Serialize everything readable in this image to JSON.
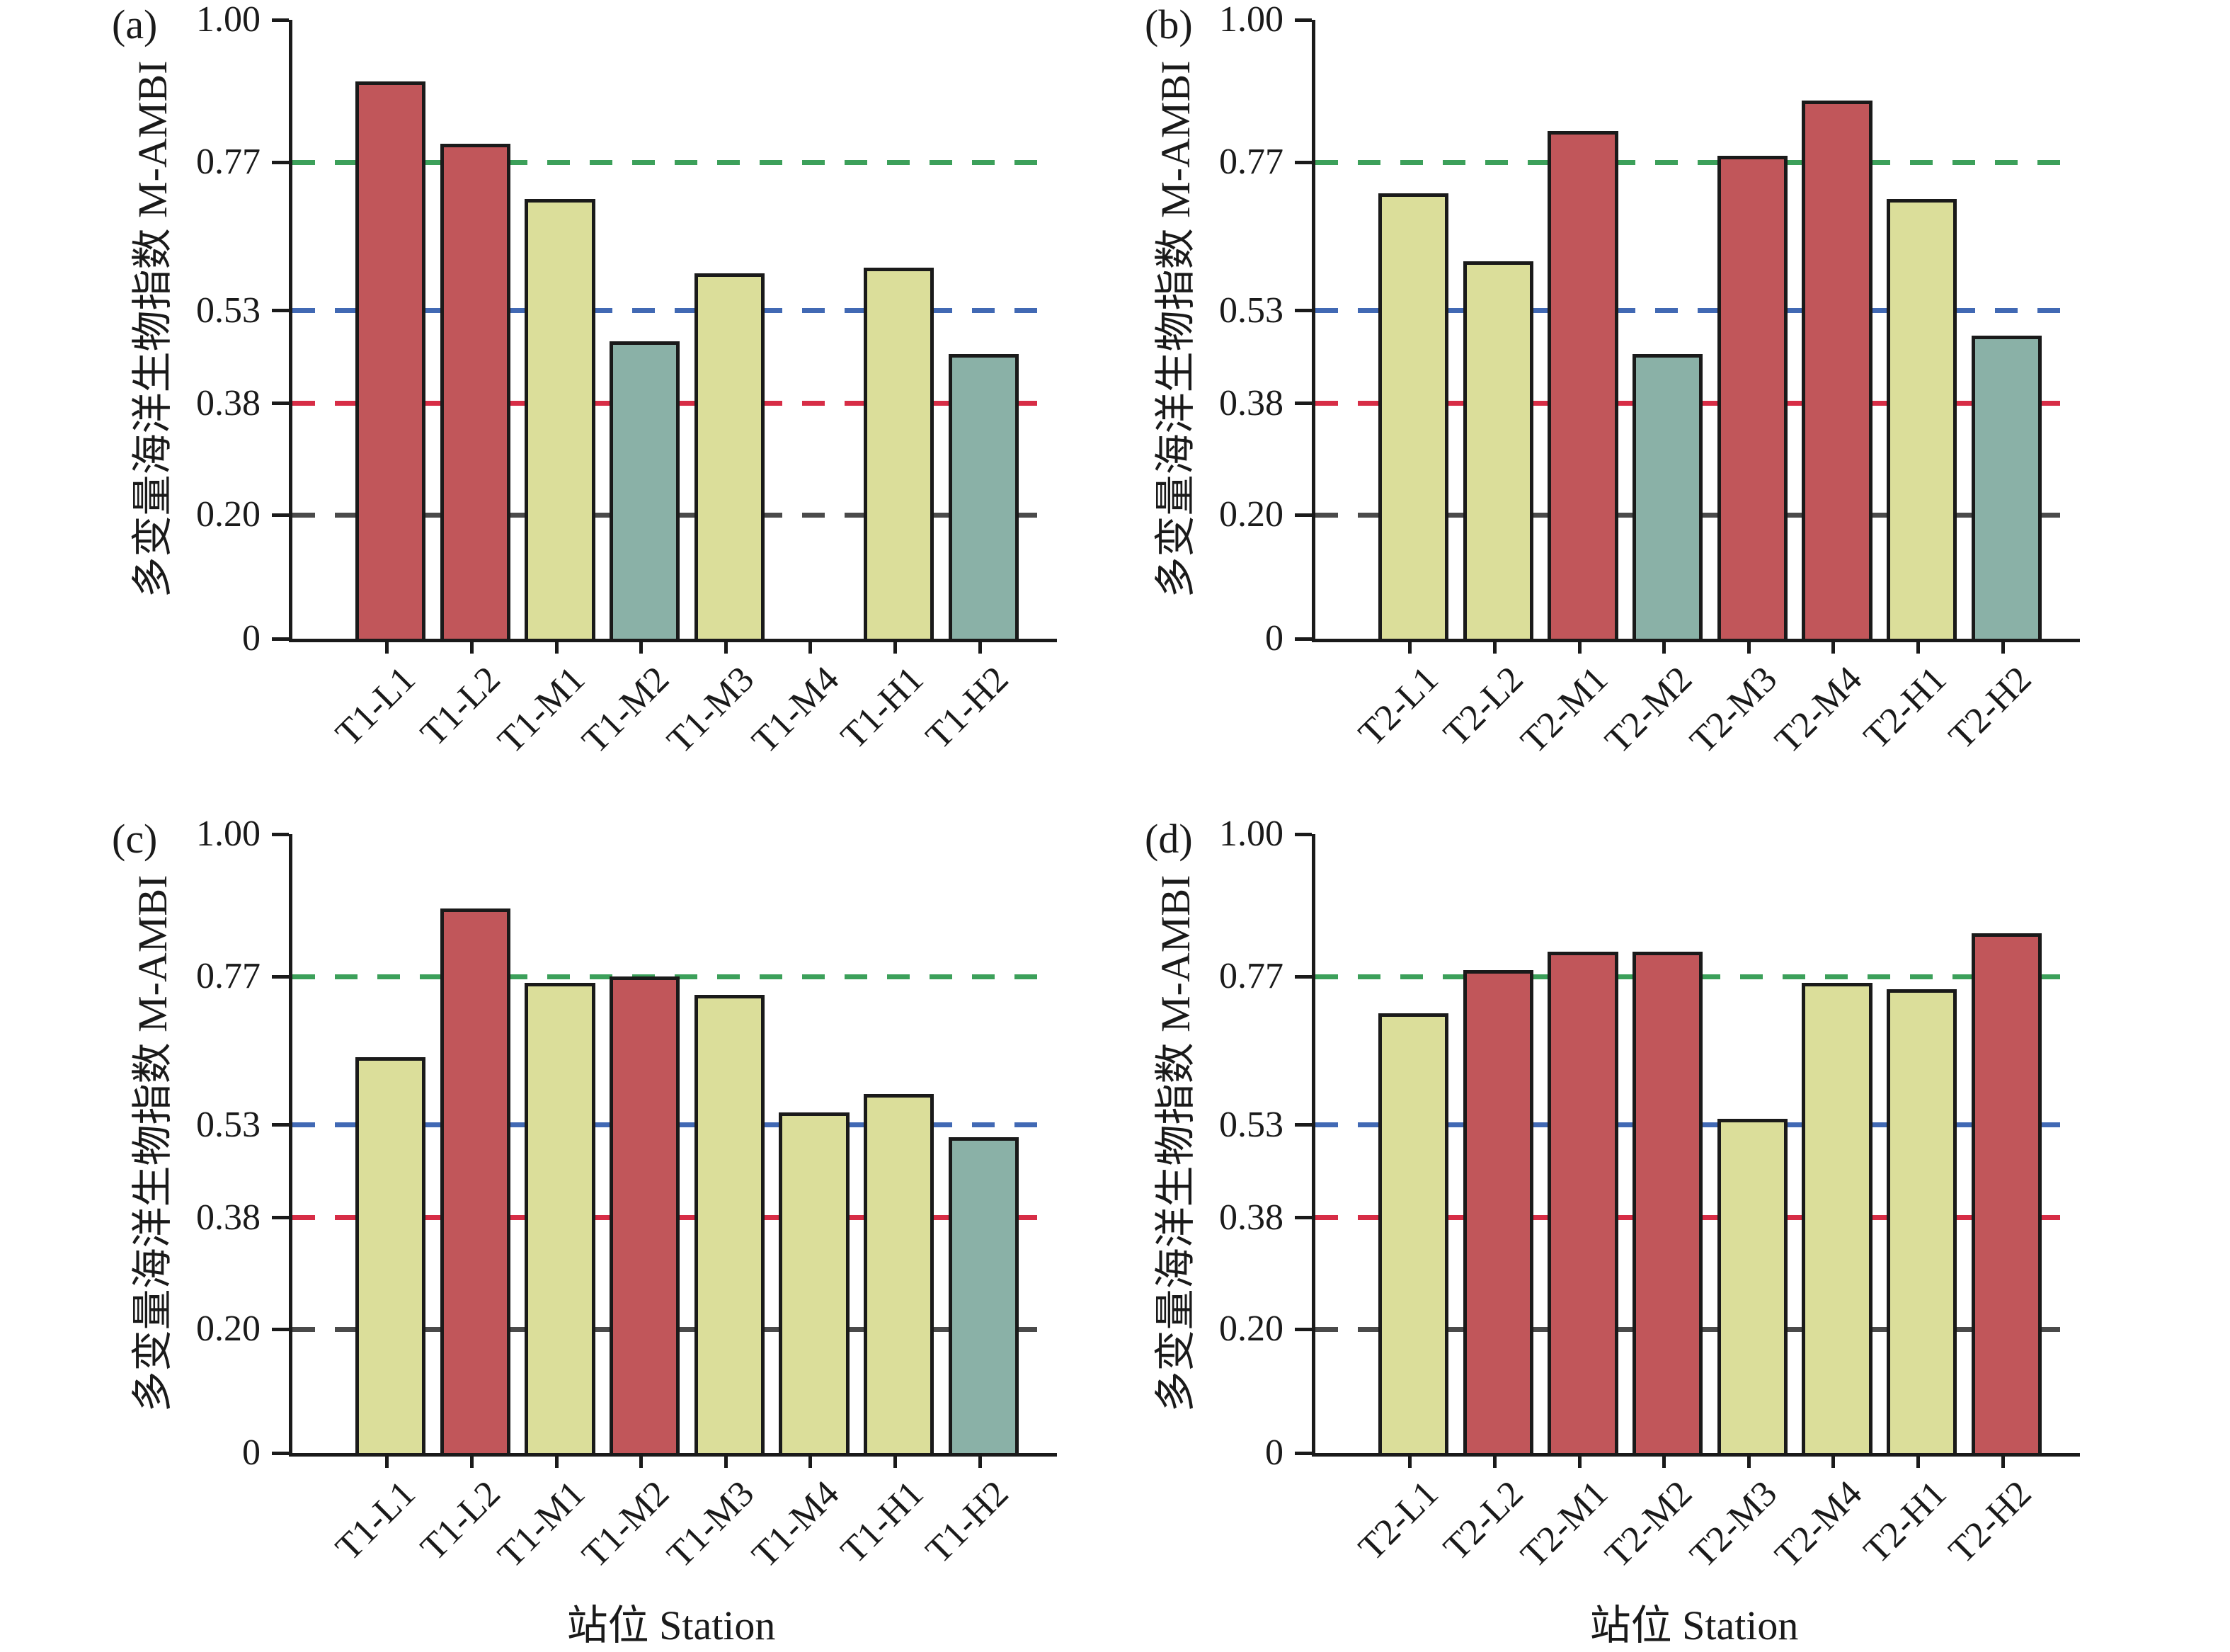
{
  "palette": {
    "red": "#c1565a",
    "yellow": "#dbde9a",
    "teal": "#8ab1a7",
    "outline": "#1a1a1a"
  },
  "chart_data": [
    {
      "panel_label": "(a)",
      "type": "bar",
      "ylabel": "多变量海洋生物指数 M-AMBI",
      "xlabel": "",
      "ylim": [
        0,
        1.0
      ],
      "ytick_values": [
        0,
        0.2,
        0.38,
        0.53,
        0.77,
        1.0
      ],
      "ytick_labels": [
        "0",
        "0.20",
        "0.38",
        "0.53",
        "0.77",
        "1.00"
      ],
      "reference_lines": [
        {
          "y": 0.77,
          "color": "#3ca05a"
        },
        {
          "y": 0.53,
          "color": "#4169b4"
        },
        {
          "y": 0.38,
          "color": "#d72d46"
        },
        {
          "y": 0.2,
          "color": "#4a4a4a"
        }
      ],
      "categories": [
        "T1-L1",
        "T1-L2",
        "T1-M1",
        "T1-M2",
        "T1-M3",
        "T1-M4",
        "T1-H1",
        "T1-H2"
      ],
      "values": [
        0.9,
        0.8,
        0.71,
        0.48,
        0.59,
        null,
        0.6,
        0.46
      ],
      "bar_colors": [
        "red",
        "red",
        "yellow",
        "teal",
        "yellow",
        null,
        "yellow",
        "teal"
      ]
    },
    {
      "panel_label": "(b)",
      "type": "bar",
      "ylabel": "多变量海洋生物指数 M-AMBI",
      "xlabel": "",
      "ylim": [
        0,
        1.0
      ],
      "ytick_values": [
        0,
        0.2,
        0.38,
        0.53,
        0.77,
        1.0
      ],
      "ytick_labels": [
        "0",
        "0.20",
        "0.38",
        "0.53",
        "0.77",
        "1.00"
      ],
      "reference_lines": [
        {
          "y": 0.77,
          "color": "#3ca05a"
        },
        {
          "y": 0.53,
          "color": "#4169b4"
        },
        {
          "y": 0.38,
          "color": "#d72d46"
        },
        {
          "y": 0.2,
          "color": "#4a4a4a"
        }
      ],
      "categories": [
        "T2-L1",
        "T2-L2",
        "T2-M1",
        "T2-M2",
        "T2-M3",
        "T2-M4",
        "T2-H1",
        "T2-H2"
      ],
      "values": [
        0.72,
        0.61,
        0.82,
        0.46,
        0.78,
        0.87,
        0.71,
        0.49
      ],
      "bar_colors": [
        "yellow",
        "yellow",
        "red",
        "teal",
        "red",
        "red",
        "yellow",
        "teal"
      ]
    },
    {
      "panel_label": "(c)",
      "type": "bar",
      "ylabel": "多变量海洋生物指数 M-AMBI",
      "xlabel": "站位 Station",
      "ylim": [
        0,
        1.0
      ],
      "ytick_values": [
        0,
        0.2,
        0.38,
        0.53,
        0.77,
        1.0
      ],
      "ytick_labels": [
        "0",
        "0.20",
        "0.38",
        "0.53",
        "0.77",
        "1.00"
      ],
      "reference_lines": [
        {
          "y": 0.77,
          "color": "#3ca05a"
        },
        {
          "y": 0.53,
          "color": "#4169b4"
        },
        {
          "y": 0.38,
          "color": "#d72d46"
        },
        {
          "y": 0.2,
          "color": "#4a4a4a"
        }
      ],
      "categories": [
        "T1-L1",
        "T1-L2",
        "T1-M1",
        "T1-M2",
        "T1-M3",
        "T1-M4",
        "T1-H1",
        "T1-H2"
      ],
      "values": [
        0.64,
        0.88,
        0.76,
        0.77,
        0.74,
        0.55,
        0.58,
        0.51
      ],
      "bar_colors": [
        "yellow",
        "red",
        "yellow",
        "red",
        "yellow",
        "yellow",
        "yellow",
        "teal"
      ]
    },
    {
      "panel_label": "(d)",
      "type": "bar",
      "ylabel": "多变量海洋生物指数 M-AMBI",
      "xlabel": "站位 Station",
      "ylim": [
        0,
        1.0
      ],
      "ytick_values": [
        0,
        0.2,
        0.38,
        0.53,
        0.77,
        1.0
      ],
      "ytick_labels": [
        "0",
        "0.20",
        "0.38",
        "0.53",
        "0.77",
        "1.00"
      ],
      "reference_lines": [
        {
          "y": 0.77,
          "color": "#3ca05a"
        },
        {
          "y": 0.53,
          "color": "#4169b4"
        },
        {
          "y": 0.38,
          "color": "#d72d46"
        },
        {
          "y": 0.2,
          "color": "#4a4a4a"
        }
      ],
      "categories": [
        "T2-L1",
        "T2-L2",
        "T2-M1",
        "T2-M2",
        "T2-M3",
        "T2-M4",
        "T2-H1",
        "T2-H2"
      ],
      "values": [
        0.71,
        0.78,
        0.81,
        0.81,
        0.54,
        0.76,
        0.75,
        0.84
      ],
      "bar_colors": [
        "yellow",
        "red",
        "red",
        "red",
        "yellow",
        "yellow",
        "yellow",
        "red"
      ]
    }
  ]
}
